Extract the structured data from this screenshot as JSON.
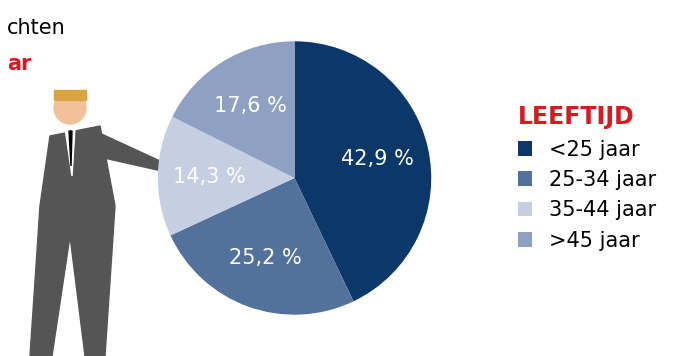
{
  "chart_data": {
    "type": "pie",
    "categories": [
      "<25 jaar",
      "25-34 jaar",
      "35-44 jaar",
      ">45 jaar"
    ],
    "values": [
      42.9,
      25.2,
      14.3,
      17.6
    ],
    "value_labels": [
      "42,9 %",
      "25,2 %",
      "14,3 %",
      "17,6 %"
    ],
    "colors": [
      "#0b3868",
      "#52729c",
      "#c6cee1",
      "#8ea1c3"
    ],
    "data_labels": true,
    "legend": "right",
    "legend_title": "LEEFTIJD",
    "annotations": [
      "chten",
      "ar"
    ]
  }
}
